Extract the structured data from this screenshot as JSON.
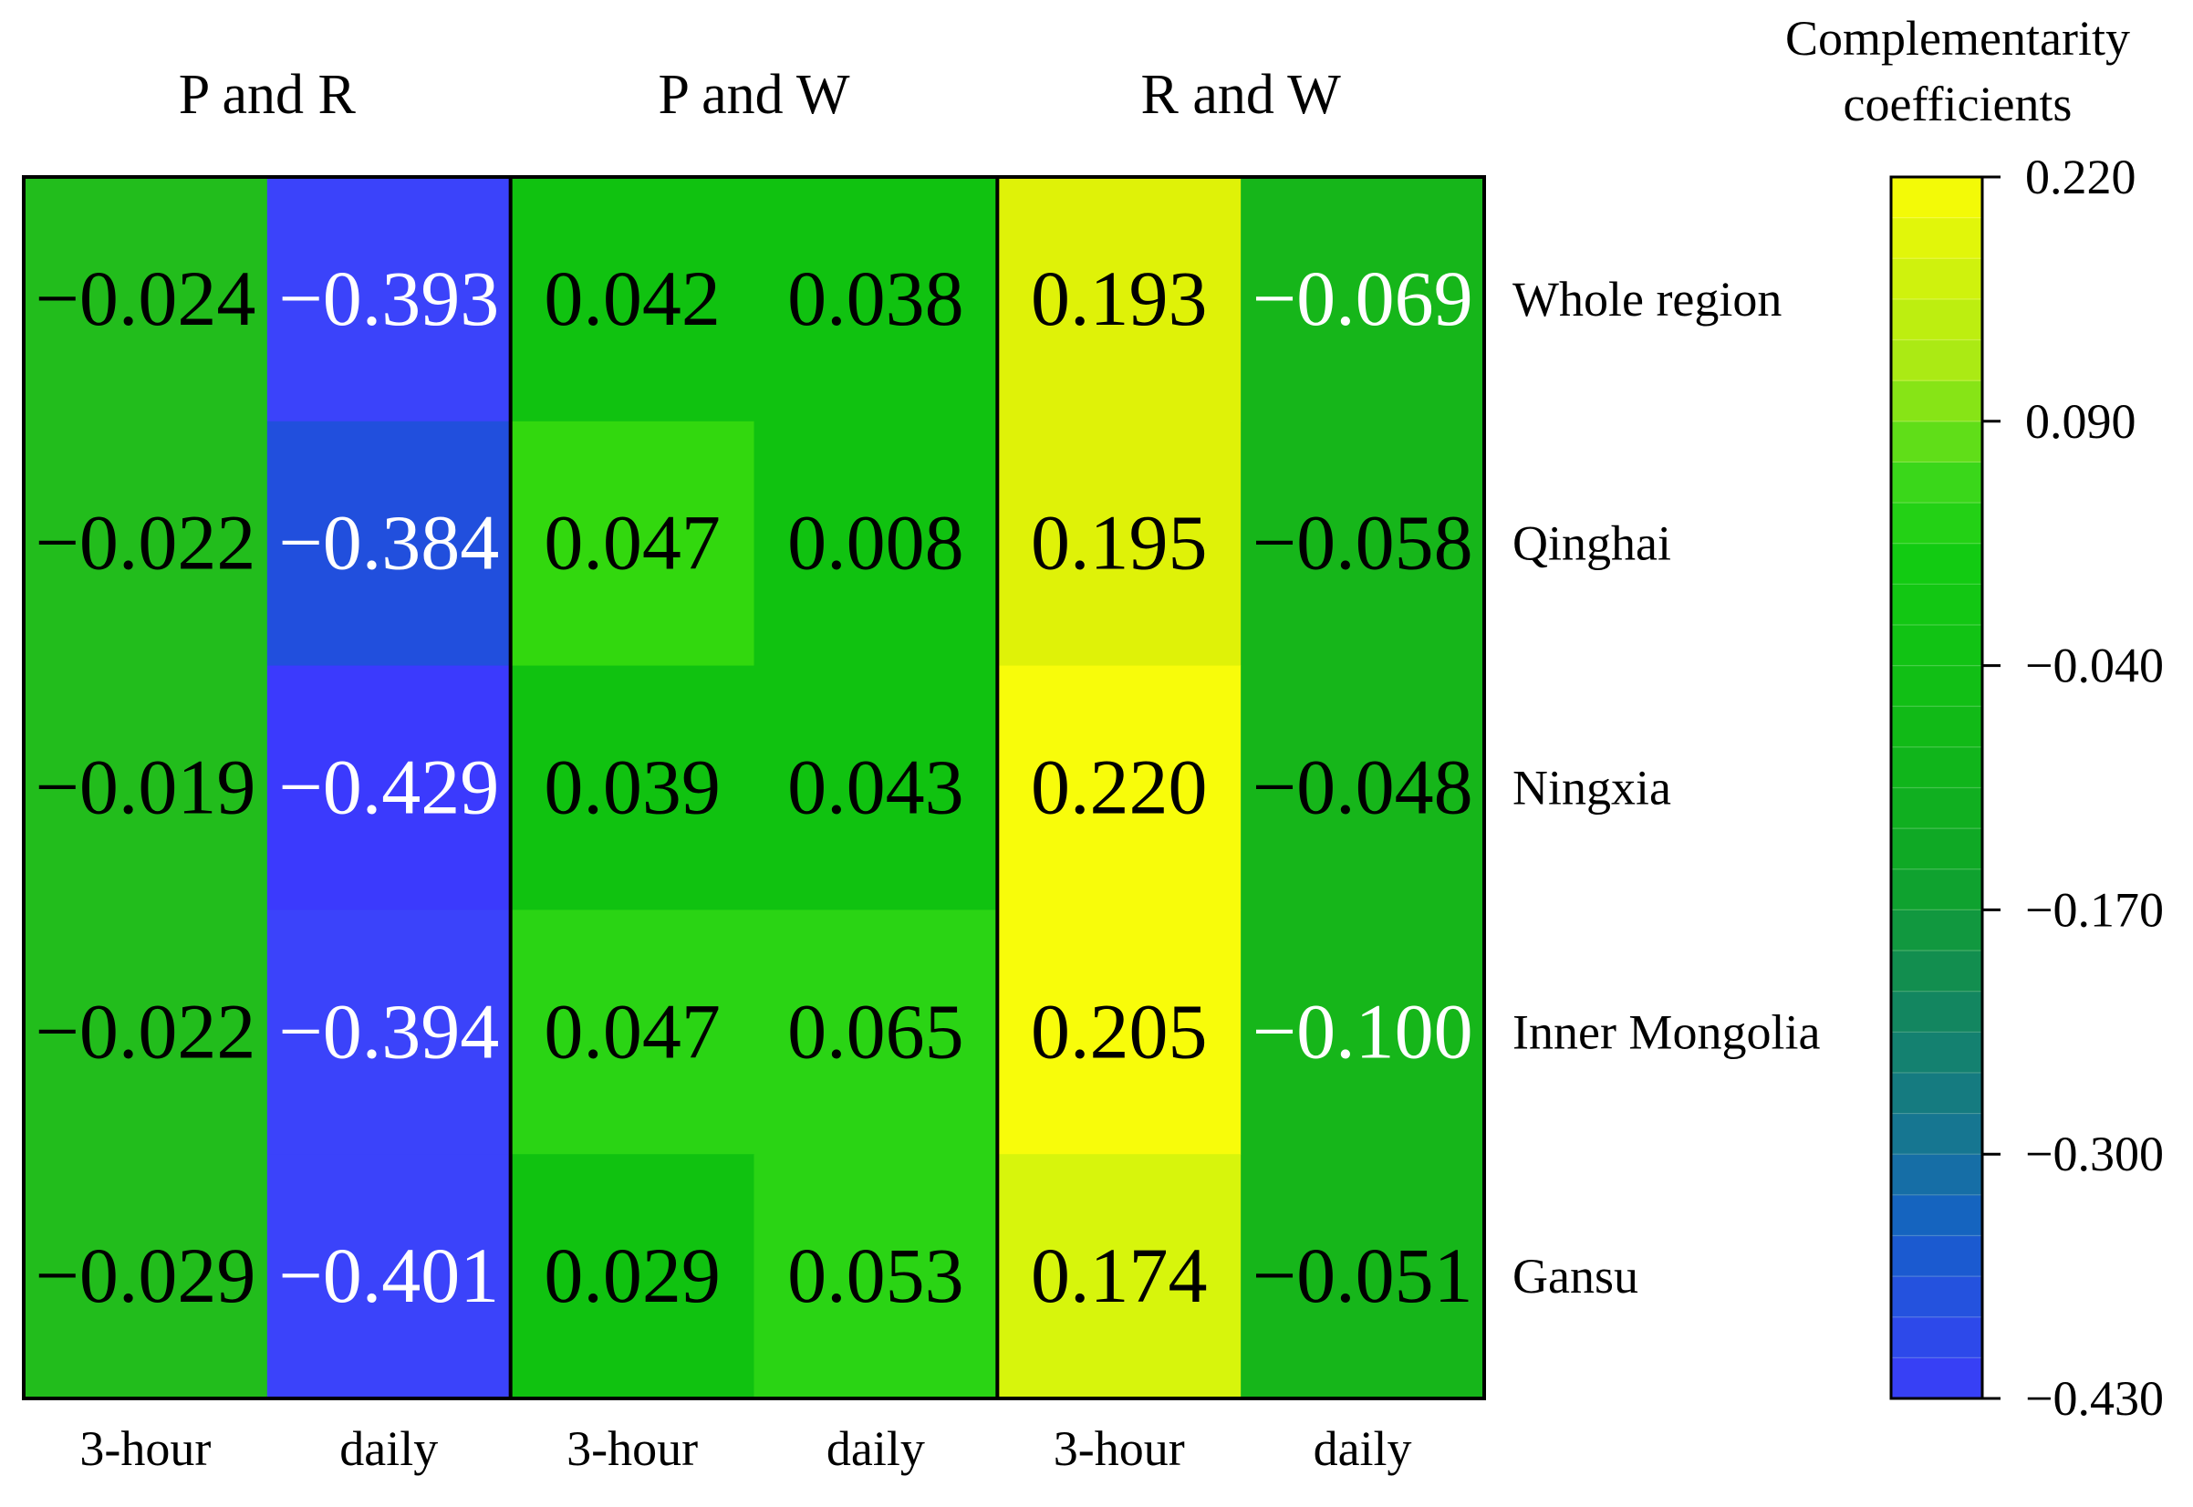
{
  "chart_data": {
    "type": "heatmap",
    "title": "",
    "pair_groups": [
      {
        "label": "P and R",
        "columns": [
          "3-hour",
          "daily"
        ]
      },
      {
        "label": "P and W",
        "columns": [
          "3-hour",
          "daily"
        ]
      },
      {
        "label": "R and W",
        "columns": [
          "3-hour",
          "daily"
        ]
      }
    ],
    "columns": [
      "3-hour",
      "daily",
      "3-hour",
      "daily",
      "3-hour",
      "daily"
    ],
    "rows": [
      "Whole region",
      "Qinghai",
      "Ningxia",
      "Inner Mongolia",
      "Gansu"
    ],
    "values": [
      [
        -0.024,
        -0.393,
        0.042,
        0.038,
        0.193,
        -0.069
      ],
      [
        -0.022,
        -0.384,
        0.047,
        0.008,
        0.195,
        -0.058
      ],
      [
        -0.019,
        -0.429,
        0.039,
        0.043,
        0.22,
        -0.048
      ],
      [
        -0.022,
        -0.394,
        0.047,
        0.065,
        0.205,
        -0.1
      ],
      [
        -0.029,
        -0.401,
        0.029,
        0.053,
        0.174,
        -0.051
      ]
    ],
    "value_labels": [
      [
        "−0.024",
        "−0.393",
        "0.042",
        "0.038",
        "0.193",
        "−0.069"
      ],
      [
        "−0.022",
        "−0.384",
        "0.047",
        "0.008",
        "0.195",
        "−0.058"
      ],
      [
        "−0.019",
        "−0.429",
        "0.039",
        "0.043",
        "0.220",
        "−0.048"
      ],
      [
        "−0.022",
        "−0.394",
        "0.047",
        "0.065",
        "0.205",
        "−0.100"
      ],
      [
        "−0.029",
        "−0.401",
        "0.029",
        "0.053",
        "0.174",
        "−0.051"
      ]
    ],
    "cell_colors": [
      [
        "#22bd1c",
        "#3b43fa",
        "#10c210",
        "#10c210",
        "#dff208",
        "#16b61a"
      ],
      [
        "#22bd1c",
        "#214fdd",
        "#32d80e",
        "#10c210",
        "#dff208",
        "#16b61a"
      ],
      [
        "#22bd1c",
        "#3b3afd",
        "#10c210",
        "#10c210",
        "#f8fc0a",
        "#16b61a"
      ],
      [
        "#22bd1c",
        "#3b43fa",
        "#2ad414",
        "#2ad414",
        "#f8fc0a",
        "#16b61a"
      ],
      [
        "#22bd1c",
        "#3b43fa",
        "#10c210",
        "#2ad414",
        "#d7f50c",
        "#16b61a"
      ]
    ],
    "text_colors": [
      [
        "#000000",
        "#ffffff",
        "#000000",
        "#000000",
        "#000000",
        "#ffffff"
      ],
      [
        "#000000",
        "#ffffff",
        "#000000",
        "#000000",
        "#000000",
        "#000000"
      ],
      [
        "#000000",
        "#ffffff",
        "#000000",
        "#000000",
        "#000000",
        "#000000"
      ],
      [
        "#000000",
        "#ffffff",
        "#000000",
        "#000000",
        "#000000",
        "#ffffff"
      ],
      [
        "#000000",
        "#ffffff",
        "#000000",
        "#000000",
        "#000000",
        "#000000"
      ]
    ],
    "colorbar": {
      "title_lines": [
        "Complementarity",
        "coefficients"
      ],
      "range": [
        -0.43,
        0.22
      ],
      "ticks": [
        0.22,
        0.09,
        -0.04,
        -0.17,
        -0.3,
        -0.43
      ],
      "tick_labels": [
        "0.220",
        "0.090",
        "−0.040",
        "−0.170",
        "−0.300",
        "−0.430"
      ],
      "levels": 30,
      "color_stops": [
        {
          "value": -0.43,
          "color": "#3c3cfa"
        },
        {
          "value": -0.39,
          "color": "#2a4ce6"
        },
        {
          "value": -0.34,
          "color": "#1560c8"
        },
        {
          "value": -0.3,
          "color": "#167399"
        },
        {
          "value": -0.21,
          "color": "#128a55"
        },
        {
          "value": -0.15,
          "color": "#0fa628"
        },
        {
          "value": -0.07,
          "color": "#11bb16"
        },
        {
          "value": 0.02,
          "color": "#12cc12"
        },
        {
          "value": 0.06,
          "color": "#3dd81a"
        },
        {
          "value": 0.12,
          "color": "#a9ea14"
        },
        {
          "value": 0.22,
          "color": "#fcfc05"
        }
      ]
    }
  }
}
